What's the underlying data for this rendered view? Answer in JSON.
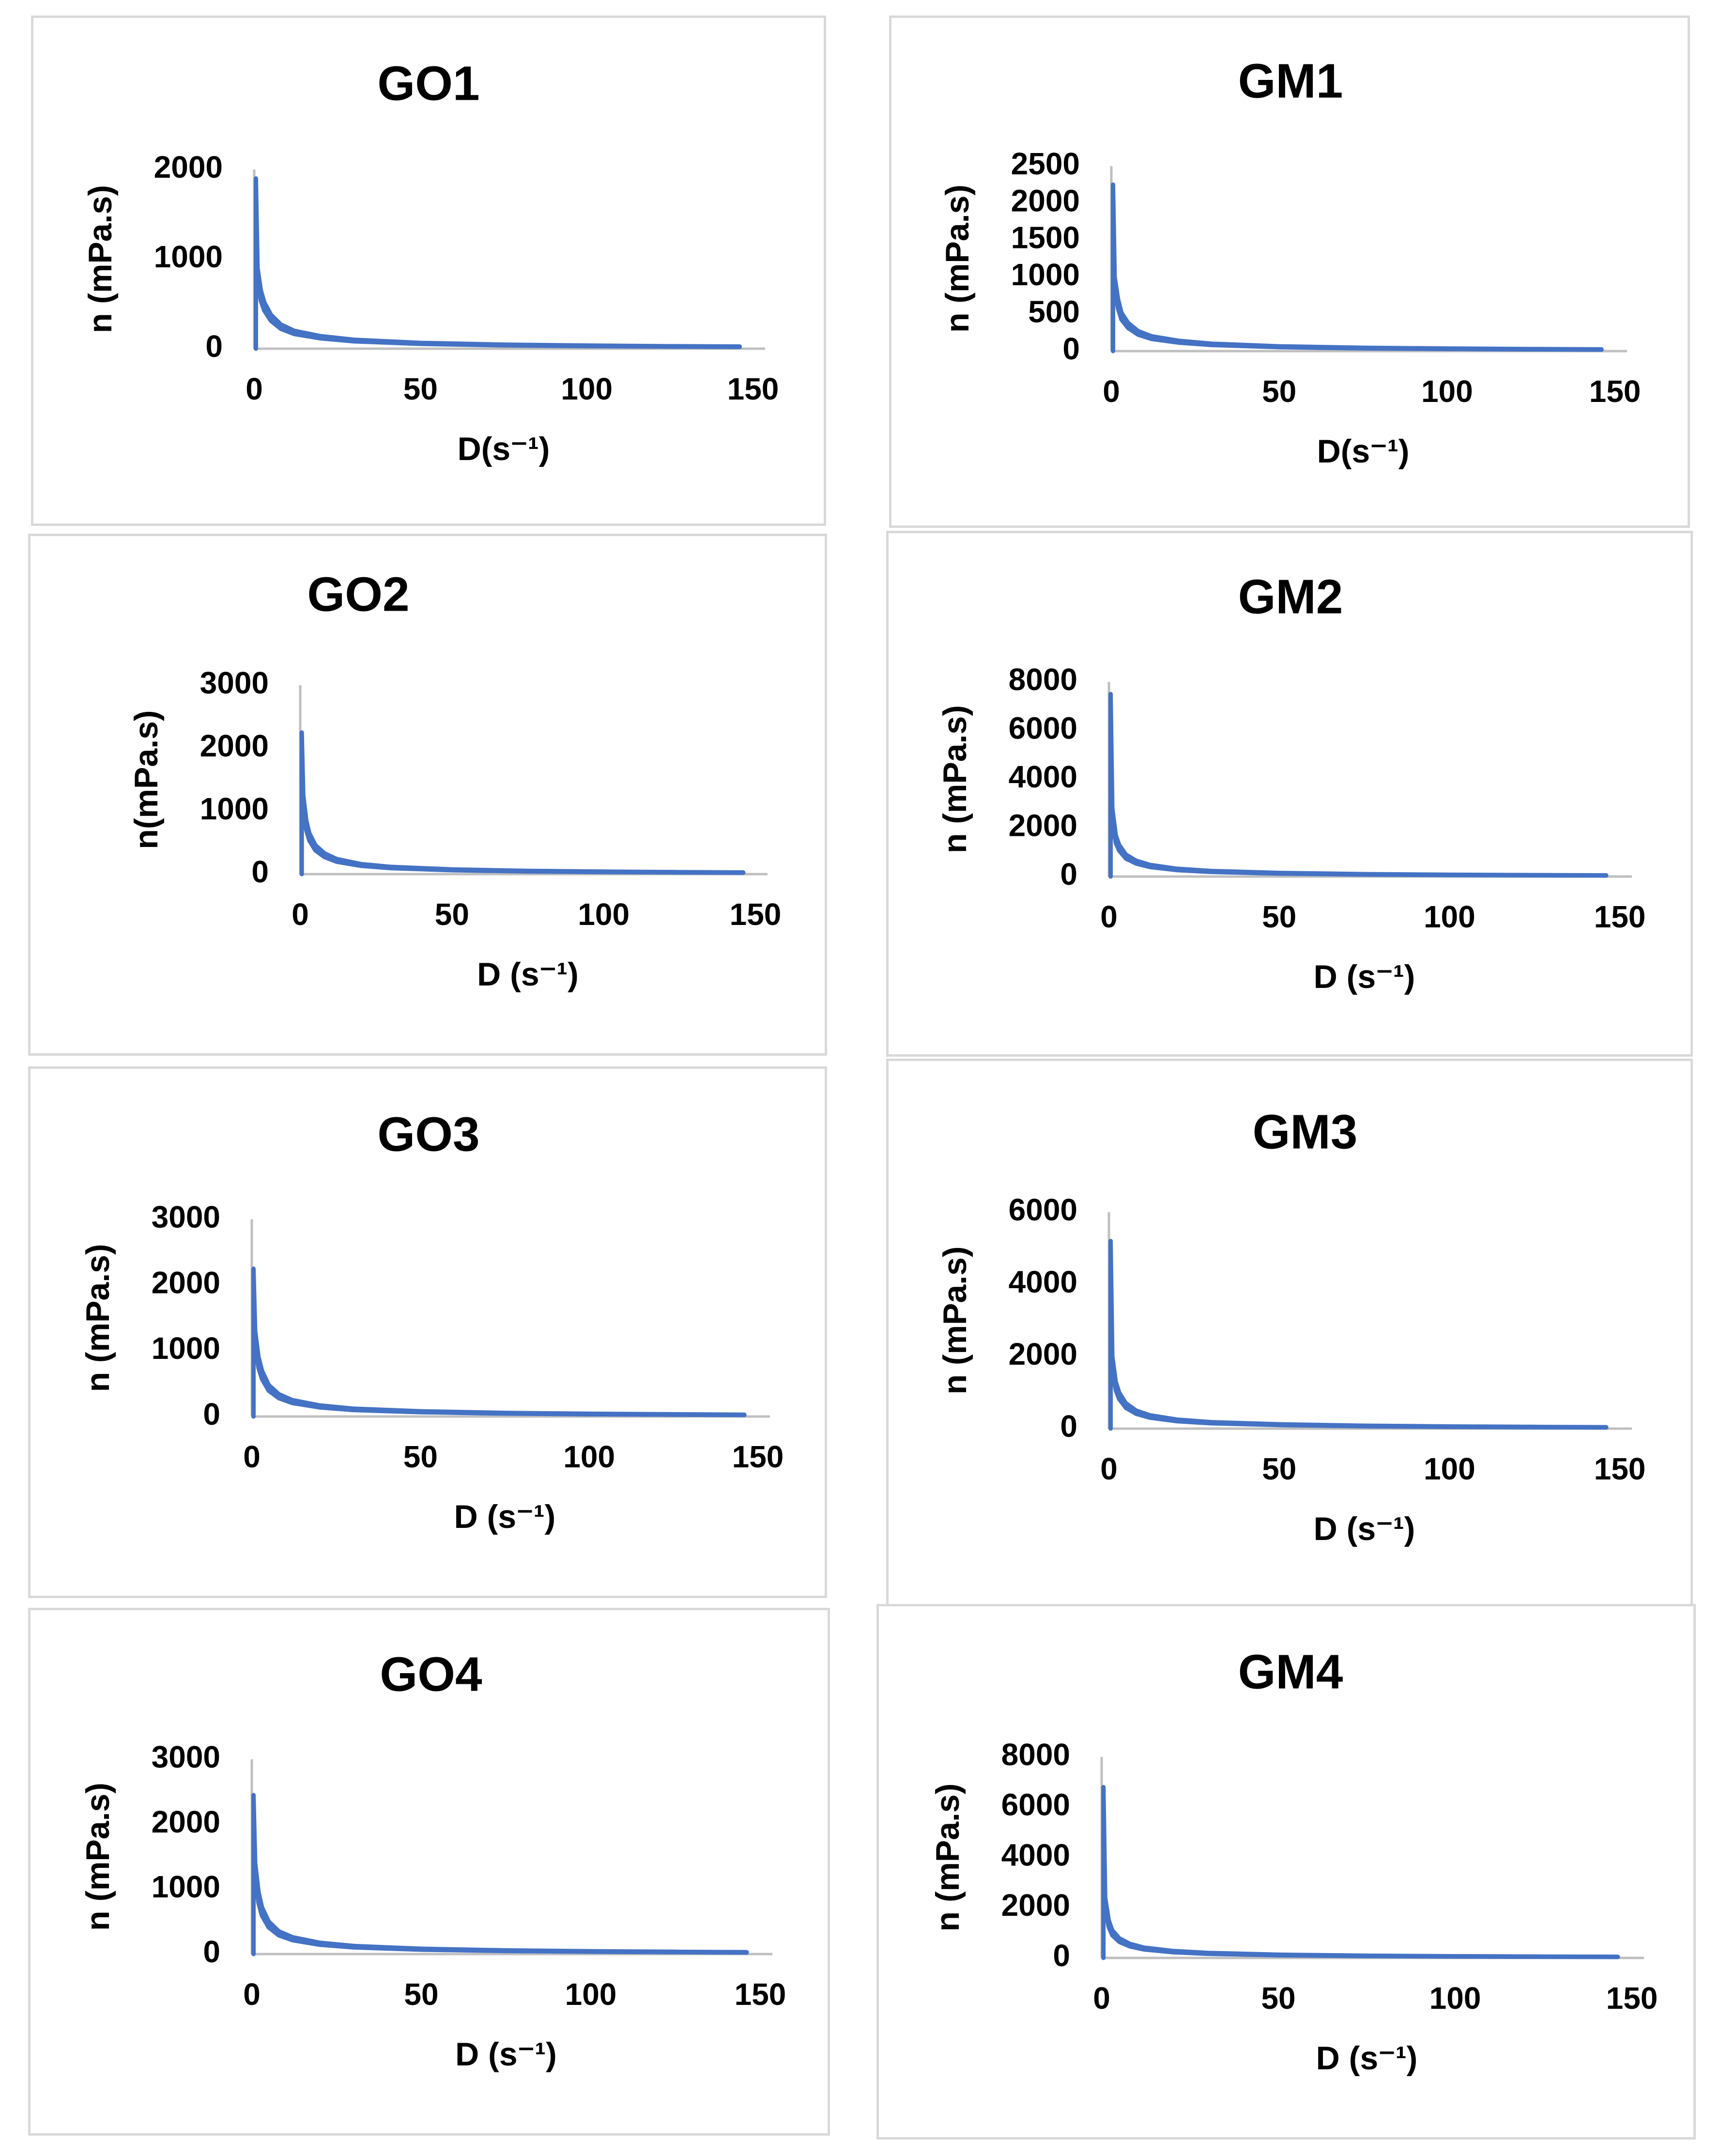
{
  "colors": {
    "series": "#4472c4",
    "axis": "#bfbfbf",
    "border": "#d9d9d9"
  },
  "chart_data": [
    {
      "type": "line",
      "title": "GO1",
      "xlabel": "D(s⁻¹)",
      "ylabel": "n (mPa.s)",
      "xlim": [
        0,
        150
      ],
      "ylim": [
        0,
        2000
      ],
      "xticks": [
        "0",
        "50",
        "100",
        "150"
      ],
      "yticks": [
        "0",
        "1000",
        "2000"
      ],
      "series": [
        {
          "name": "n",
          "peak": 1900,
          "x_end": 146,
          "x": [
            0.5,
            1,
            2,
            3,
            5,
            8,
            12,
            20,
            30,
            50,
            75,
            100,
            125,
            146
          ],
          "y": [
            1900,
            900,
            650,
            520,
            380,
            270,
            200,
            140,
            100,
            65,
            45,
            35,
            28,
            24
          ]
        }
      ]
    },
    {
      "type": "line",
      "title": "GM1",
      "xlabel": "D(s⁻¹)",
      "ylabel": "n (mPa.s)",
      "xlim": [
        0,
        150
      ],
      "ylim": [
        0,
        2500
      ],
      "xticks": [
        "0",
        "50",
        "100",
        "150"
      ],
      "yticks": [
        "0",
        "500",
        "1000",
        "1500",
        "2000",
        "2500"
      ],
      "series": [
        {
          "name": "n",
          "peak": 2250,
          "x_end": 146,
          "x": [
            0.5,
            1,
            2,
            3,
            5,
            8,
            12,
            20,
            30,
            50,
            75,
            100,
            125,
            146
          ],
          "y": [
            2250,
            1000,
            700,
            520,
            380,
            270,
            200,
            140,
            100,
            65,
            45,
            35,
            28,
            24
          ]
        }
      ]
    },
    {
      "type": "line",
      "title": "GO2",
      "xlabel": "D (s⁻¹)",
      "ylabel": "n(mPa.s)",
      "xlim": [
        0,
        150
      ],
      "ylim": [
        0,
        3000
      ],
      "xticks": [
        "0",
        "50",
        "100",
        "150"
      ],
      "yticks": [
        "0",
        "1000",
        "2000",
        "3000"
      ],
      "series": [
        {
          "name": "n",
          "peak": 2250,
          "x_end": 146,
          "x": [
            0.5,
            1,
            2,
            3,
            5,
            8,
            12,
            20,
            30,
            50,
            75,
            100,
            125,
            146
          ],
          "y": [
            2250,
            1250,
            850,
            650,
            460,
            330,
            240,
            160,
            115,
            75,
            52,
            40,
            32,
            27
          ]
        }
      ]
    },
    {
      "type": "line",
      "title": "GM2",
      "xlabel": "D (s⁻¹)",
      "ylabel": "n (mPa.s)",
      "xlim": [
        0,
        150
      ],
      "ylim": [
        0,
        8000
      ],
      "xticks": [
        "0",
        "50",
        "100",
        "150"
      ],
      "yticks": [
        "0",
        "2000",
        "4000",
        "6000",
        "8000"
      ],
      "series": [
        {
          "name": "n",
          "peak": 7500,
          "x_end": 146,
          "x": [
            0.5,
            1,
            2,
            3,
            5,
            8,
            12,
            20,
            30,
            50,
            75,
            100,
            125,
            146
          ],
          "y": [
            7500,
            2800,
            1700,
            1300,
            900,
            650,
            480,
            320,
            230,
            150,
            100,
            75,
            60,
            50
          ]
        }
      ]
    },
    {
      "type": "line",
      "title": "GO3",
      "xlabel": "D (s⁻¹)",
      "ylabel": "n (mPa.s)",
      "xlim": [
        0,
        150
      ],
      "ylim": [
        0,
        3000
      ],
      "xticks": [
        "0",
        "50",
        "100",
        "150"
      ],
      "yticks": [
        "0",
        "1000",
        "2000",
        "3000"
      ],
      "series": [
        {
          "name": "n",
          "peak": 2250,
          "x_end": 146,
          "x": [
            0.5,
            1,
            2,
            3,
            5,
            8,
            12,
            20,
            30,
            50,
            75,
            100,
            125,
            146
          ],
          "y": [
            2250,
            1300,
            900,
            700,
            480,
            340,
            250,
            170,
            120,
            80,
            55,
            42,
            34,
            28
          ]
        }
      ]
    },
    {
      "type": "line",
      "title": "GM3",
      "xlabel": "D (s⁻¹)",
      "ylabel": "n (mPa.s)",
      "xlim": [
        0,
        150
      ],
      "ylim": [
        0,
        6000
      ],
      "xticks": [
        "0",
        "50",
        "100",
        "150"
      ],
      "yticks": [
        "0",
        "2000",
        "4000",
        "6000"
      ],
      "series": [
        {
          "name": "n",
          "peak": 5200,
          "x_end": 146,
          "x": [
            0.5,
            1,
            2,
            3,
            5,
            8,
            12,
            20,
            30,
            50,
            75,
            100,
            125,
            146
          ],
          "y": [
            5200,
            2000,
            1300,
            1000,
            700,
            500,
            370,
            250,
            180,
            120,
            80,
            60,
            48,
            40
          ]
        }
      ]
    },
    {
      "type": "line",
      "title": "GO4",
      "xlabel": "D (s⁻¹)",
      "ylabel": "n (mPa.s)",
      "xlim": [
        0,
        150
      ],
      "ylim": [
        0,
        3000
      ],
      "xticks": [
        "0",
        "50",
        "100",
        "150"
      ],
      "yticks": [
        "0",
        "1000",
        "2000",
        "3000"
      ],
      "series": [
        {
          "name": "n",
          "peak": 2450,
          "x_end": 146,
          "x": [
            0.5,
            1,
            2,
            3,
            5,
            8,
            12,
            20,
            30,
            50,
            75,
            100,
            125,
            146
          ],
          "y": [
            2450,
            1400,
            950,
            720,
            500,
            350,
            260,
            175,
            125,
            82,
            57,
            44,
            35,
            29
          ]
        }
      ]
    },
    {
      "type": "line",
      "title": "GM4",
      "xlabel": "D (s⁻¹)",
      "ylabel": "n (mPa.s)",
      "xlim": [
        0,
        150
      ],
      "ylim": [
        0,
        8000
      ],
      "xticks": [
        "0",
        "50",
        "100",
        "150"
      ],
      "yticks": [
        "0",
        "2000",
        "4000",
        "6000",
        "8000"
      ],
      "series": [
        {
          "name": "n",
          "peak": 6800,
          "x_end": 146,
          "x": [
            0.5,
            1,
            2,
            3,
            5,
            8,
            12,
            20,
            30,
            50,
            75,
            100,
            125,
            146
          ],
          "y": [
            6800,
            2400,
            1500,
            1100,
            780,
            560,
            410,
            280,
            200,
            130,
            90,
            68,
            54,
            45
          ]
        }
      ]
    }
  ]
}
